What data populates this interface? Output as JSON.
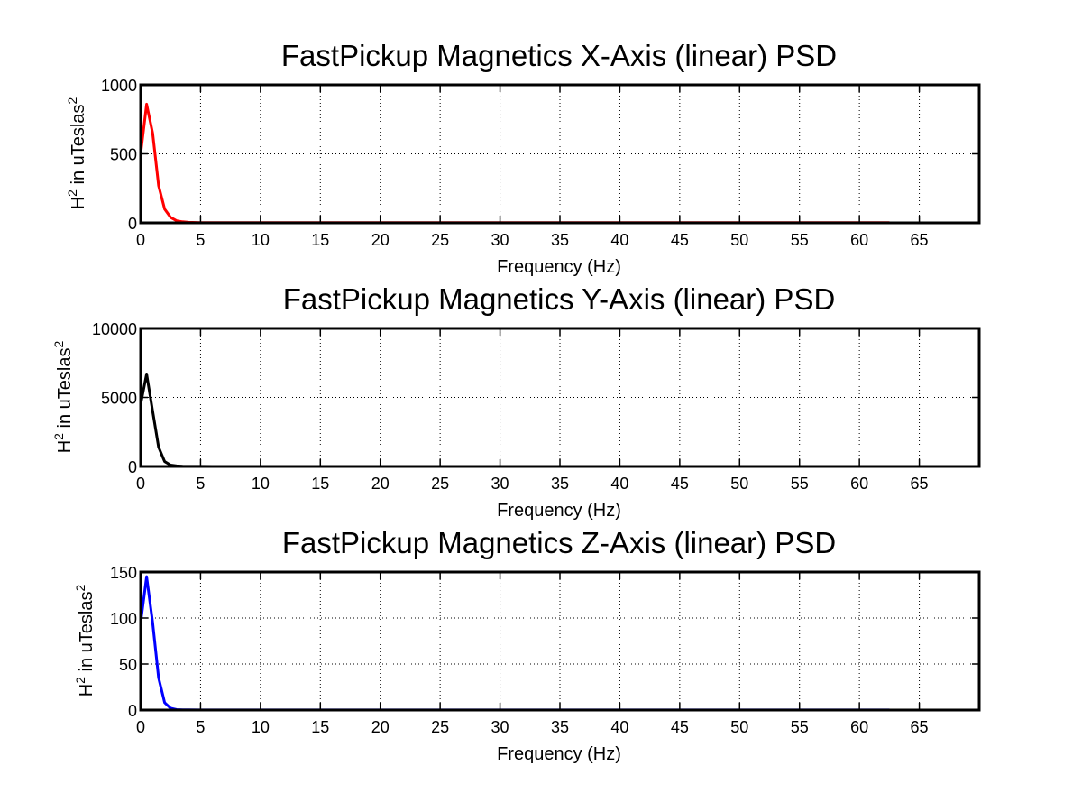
{
  "chart_data": [
    {
      "type": "line",
      "title": "FastPickup Magnetics X-Axis (linear) PSD",
      "xlabel": "Frequency (Hz)",
      "ylabel_main": "H",
      "ylabel_sup": "2",
      "ylabel_mid": " in uTeslas",
      "ylabel_sup2": "2",
      "xlim": [
        0,
        70
      ],
      "ylim": [
        0,
        1000
      ],
      "xticks": [
        0,
        5,
        10,
        15,
        20,
        25,
        30,
        35,
        40,
        45,
        50,
        55,
        60,
        65
      ],
      "yticks": [
        0,
        500,
        1000
      ],
      "grid": true,
      "series": [
        {
          "color": "#ff0000",
          "x": [
            0,
            0.5,
            1,
            1.5,
            2,
            2.5,
            3,
            3.5,
            4,
            5,
            6,
            10,
            20,
            30,
            40,
            50,
            60,
            62.5
          ],
          "y": [
            500,
            860,
            650,
            270,
            100,
            40,
            15,
            8,
            4,
            2,
            1,
            1,
            1,
            1,
            1,
            1,
            1,
            1
          ]
        }
      ]
    },
    {
      "type": "line",
      "title": "FastPickup Magnetics Y-Axis (linear) PSD",
      "xlabel": "Frequency (Hz)",
      "ylabel_main": "H",
      "ylabel_sup": "2",
      "ylabel_mid": " in uTeslas",
      "ylabel_sup2": "2",
      "xlim": [
        0,
        70
      ],
      "ylim": [
        0,
        10000
      ],
      "xticks": [
        0,
        5,
        10,
        15,
        20,
        25,
        30,
        35,
        40,
        45,
        50,
        55,
        60,
        65
      ],
      "yticks": [
        0,
        5000,
        10000
      ],
      "grid": true,
      "series": [
        {
          "color": "#000000",
          "x": [
            0,
            0.5,
            1,
            1.5,
            2,
            2.5,
            3,
            3.5,
            4,
            5,
            6,
            10,
            20,
            30,
            40,
            50,
            60,
            62.5
          ],
          "y": [
            4500,
            6700,
            4000,
            1400,
            350,
            100,
            40,
            15,
            8,
            4,
            2,
            2,
            2,
            2,
            2,
            2,
            2,
            2
          ]
        }
      ]
    },
    {
      "type": "line",
      "title": "FastPickup Magnetics Z-Axis (linear) PSD",
      "xlabel": "Frequency (Hz)",
      "ylabel_main": "H",
      "ylabel_sup": "2",
      "ylabel_mid": " in uTeslas",
      "ylabel_sup2": "2",
      "xlim": [
        0,
        70
      ],
      "ylim": [
        0,
        150
      ],
      "xticks": [
        0,
        5,
        10,
        15,
        20,
        25,
        30,
        35,
        40,
        45,
        50,
        55,
        60,
        65
      ],
      "yticks": [
        0,
        50,
        100,
        150
      ],
      "grid": true,
      "series": [
        {
          "color": "#0000ff",
          "x": [
            0,
            0.5,
            1,
            1.5,
            2,
            2.5,
            3,
            3.5,
            4,
            5,
            6,
            10,
            20,
            30,
            40,
            50,
            60,
            62.5
          ],
          "y": [
            95,
            145,
            95,
            35,
            8,
            2,
            0.5,
            0.3,
            0.2,
            0.1,
            0.1,
            0.1,
            0.1,
            0.1,
            0.1,
            0.1,
            0.1,
            0.1
          ]
        }
      ]
    }
  ]
}
